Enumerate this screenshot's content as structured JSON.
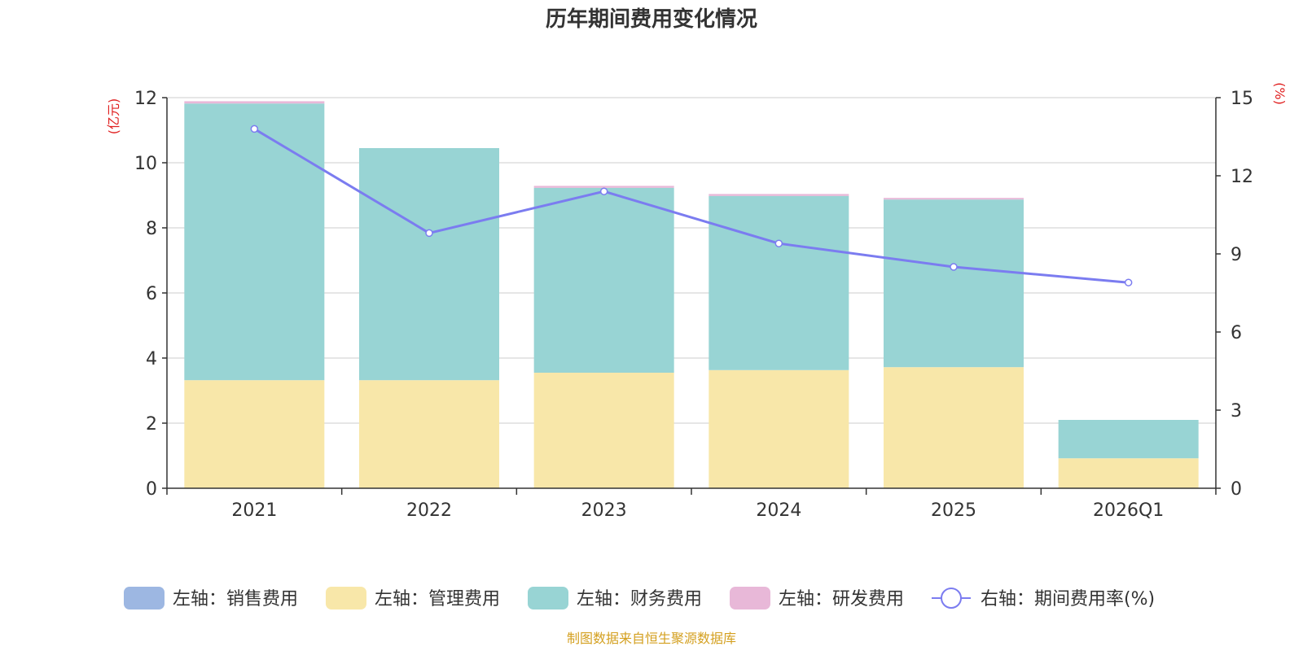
{
  "chart_data": {
    "type": "bar",
    "title": "历年期间费用变化情况",
    "categories": [
      "2021",
      "2022",
      "2023",
      "2024",
      "2025",
      "2026Q1"
    ],
    "series": [
      {
        "name": "左轴：销售费用",
        "axis": "left",
        "kind": "stacked-bar",
        "color": "#9db7e2",
        "values": [
          0,
          0,
          0,
          0,
          0,
          0
        ]
      },
      {
        "name": "左轴：管理费用",
        "axis": "left",
        "kind": "stacked-bar",
        "color": "#f8e7a9",
        "values": [
          3.32,
          3.32,
          3.55,
          3.63,
          3.72,
          0.92
        ]
      },
      {
        "name": "左轴：财务费用",
        "axis": "left",
        "kind": "stacked-bar",
        "color": "#98d4d4",
        "values": [
          8.5,
          7.13,
          5.68,
          5.35,
          5.15,
          1.18
        ]
      },
      {
        "name": "左轴：研发费用",
        "axis": "left",
        "kind": "stacked-bar",
        "color": "#e8b8d8",
        "values": [
          0.07,
          0,
          0.06,
          0.06,
          0.05,
          0
        ]
      },
      {
        "name": "右轴：期间费用率(%)",
        "axis": "right",
        "kind": "line",
        "color": "#7b7cf0",
        "values": [
          13.8,
          9.8,
          11.4,
          9.4,
          8.5,
          7.9
        ]
      }
    ],
    "left_axis": {
      "unit": "(亿元)",
      "ylim": [
        0,
        12
      ],
      "ticks": [
        "0",
        "2",
        "4",
        "6",
        "8",
        "10",
        "12"
      ]
    },
    "right_axis": {
      "unit": "(%)",
      "ylim": [
        0,
        15
      ],
      "ticks": [
        "0",
        "3",
        "6",
        "9",
        "12",
        "15"
      ]
    },
    "legend_position": "bottom",
    "grid": true
  },
  "source_text": "制图数据来自恒生聚源数据库",
  "colors": {
    "unit_red": "#e02020",
    "source_gold": "#d4a020",
    "axis": "#333333",
    "grid": "#cccccc"
  }
}
